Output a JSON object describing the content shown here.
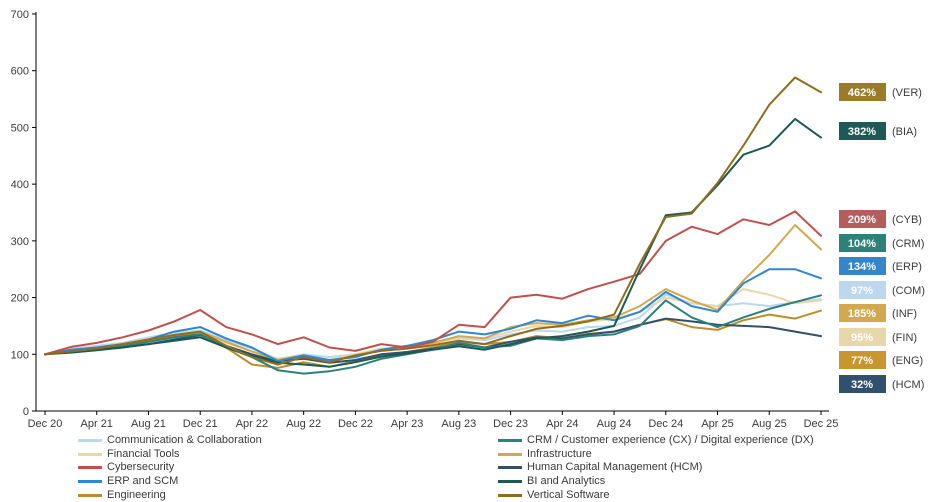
{
  "chart_data": {
    "type": "line",
    "title": "",
    "xlabel": "",
    "ylabel": "",
    "y_axis": {
      "min": 0,
      "max": 700,
      "step": 100,
      "tick_labels": [
        "0",
        "100",
        "200",
        "300",
        "400",
        "500",
        "600",
        "700"
      ]
    },
    "x_tick_labels": [
      "Dec 20",
      "Apr 21",
      "Aug 21",
      "Dec 21",
      "Apr 22",
      "Aug 22",
      "Dec 22",
      "Apr 23",
      "Aug 23",
      "Dec 23",
      "Apr 24",
      "Aug 24",
      "Dec 24",
      "Apr 25",
      "Aug 25",
      "Dec 25"
    ],
    "x_points": [
      "Dec 20",
      "Feb 21",
      "Apr 21",
      "Jun 21",
      "Aug 21",
      "Oct 21",
      "Dec 21",
      "Feb 22",
      "Apr 22",
      "Jun 22",
      "Aug 22",
      "Oct 22",
      "Dec 22",
      "Feb 23",
      "Apr 23",
      "Jun 23",
      "Aug 23",
      "Oct 23",
      "Dec 23",
      "Feb 24",
      "Apr 24",
      "Jun 24",
      "Aug 24",
      "Oct 24",
      "Dec 24",
      "Feb 25",
      "Apr 25",
      "Jun 25",
      "Aug 25",
      "Oct 25",
      "Dec 25"
    ],
    "grid": false,
    "legend_position": "bottom-two-columns",
    "series": [
      {
        "code": "COM",
        "name": "Communication & Collaboration",
        "color": "#BDD7EE",
        "pct_label": "97%",
        "badge_bg": "#BDD7EE",
        "values": [
          100,
          110,
          115,
          120,
          130,
          138,
          142,
          125,
          110,
          92,
          100,
          95,
          100,
          108,
          115,
          120,
          128,
          125,
          135,
          142,
          140,
          148,
          150,
          165,
          205,
          190,
          185,
          190,
          185,
          192,
          197
        ]
      },
      {
        "code": "FIN",
        "name": "Financial Tools",
        "color": "#E8D7A9",
        "pct_label": "95%",
        "badge_bg": "#E8D7A9",
        "values": [
          100,
          108,
          112,
          118,
          128,
          135,
          140,
          120,
          105,
          92,
          98,
          90,
          100,
          110,
          112,
          118,
          130,
          128,
          140,
          150,
          148,
          158,
          162,
          175,
          200,
          190,
          185,
          215,
          205,
          190,
          195
        ]
      },
      {
        "code": "ENG",
        "name": "Engineering",
        "color": "#BD8D2D",
        "pct_label": "77%",
        "badge_bg": "#C8952F",
        "values": [
          100,
          106,
          110,
          116,
          124,
          132,
          136,
          112,
          82,
          76,
          86,
          78,
          88,
          98,
          104,
          112,
          122,
          118,
          122,
          132,
          128,
          136,
          140,
          152,
          162,
          148,
          143,
          160,
          170,
          163,
          177
        ]
      },
      {
        "code": "HCM",
        "name": "Human Capital Management (HCM)",
        "color": "#31506E",
        "pct_label": "32%",
        "badge_bg": "#31506E",
        "values": [
          100,
          104,
          108,
          112,
          118,
          126,
          134,
          115,
          100,
          88,
          92,
          85,
          90,
          100,
          104,
          110,
          118,
          112,
          122,
          130,
          128,
          135,
          140,
          152,
          163,
          158,
          152,
          150,
          148,
          140,
          132
        ]
      },
      {
        "code": "INF",
        "name": "Infrastructure",
        "color": "#D1A94F",
        "pct_label": "185%",
        "badge_bg": "#D1A94F",
        "values": [
          100,
          107,
          112,
          118,
          126,
          134,
          140,
          122,
          105,
          90,
          98,
          88,
          98,
          108,
          112,
          120,
          132,
          128,
          148,
          155,
          152,
          160,
          165,
          185,
          215,
          195,
          178,
          230,
          275,
          328,
          285
        ]
      },
      {
        "code": "CRM",
        "name": "CRM / Customer experience (CX) / Digital experience (DX)",
        "color": "#2E807B",
        "pct_label": "104%",
        "badge_bg": "#2E807B",
        "values": [
          100,
          105,
          108,
          114,
          122,
          130,
          135,
          112,
          95,
          72,
          66,
          70,
          78,
          92,
          100,
          108,
          120,
          112,
          115,
          128,
          125,
          132,
          135,
          150,
          195,
          165,
          148,
          165,
          180,
          192,
          204
        ]
      },
      {
        "code": "ERP",
        "name": "ERP and SCM",
        "color": "#2E87D1",
        "pct_label": "134%",
        "badge_bg": "#3585C8",
        "values": [
          100,
          108,
          112,
          118,
          126,
          140,
          148,
          128,
          112,
          88,
          98,
          90,
          95,
          108,
          115,
          125,
          140,
          135,
          145,
          160,
          155,
          168,
          160,
          175,
          210,
          185,
          175,
          225,
          250,
          250,
          234
        ]
      },
      {
        "code": "CYB",
        "name": "Cybersecurity",
        "color": "#C0504D",
        "pct_label": "209%",
        "badge_bg": "#B25E5C",
        "values": [
          100,
          113,
          120,
          130,
          142,
          158,
          178,
          148,
          135,
          118,
          130,
          112,
          106,
          118,
          112,
          122,
          152,
          148,
          200,
          205,
          198,
          215,
          228,
          242,
          300,
          325,
          312,
          338,
          328,
          352,
          309
        ]
      },
      {
        "code": "BIA",
        "name": "BI and Analytics",
        "color": "#1C5A53",
        "pct_label": "382%",
        "badge_bg": "#1E5A55",
        "values": [
          100,
          103,
          107,
          112,
          118,
          124,
          130,
          112,
          98,
          85,
          82,
          78,
          86,
          96,
          102,
          108,
          114,
          108,
          118,
          128,
          132,
          140,
          150,
          250,
          345,
          350,
          398,
          452,
          468,
          515,
          482
        ]
      },
      {
        "code": "VER",
        "name": "Vertical Software",
        "color": "#8F6D1D",
        "pct_label": "462%",
        "badge_bg": "#9A7B28",
        "values": [
          100,
          105,
          110,
          118,
          126,
          134,
          140,
          115,
          95,
          82,
          95,
          86,
          98,
          106,
          110,
          116,
          124,
          118,
          132,
          145,
          150,
          158,
          170,
          260,
          342,
          348,
          402,
          468,
          540,
          588,
          562
        ]
      }
    ],
    "badge_order": [
      "VER",
      "BIA",
      "CYB",
      "CRM",
      "ERP",
      "COM",
      "INF",
      "FIN",
      "ENG",
      "HCM"
    ],
    "badge_codes_display": {
      "VER": "(VER)",
      "BIA": "(BIA)",
      "CYB": "(CYB)",
      "CRM": "(CRM)",
      "ERP": "(ERP)",
      "COM": "(COM)",
      "INF": "(INF)",
      "FIN": "(FIN)",
      "ENG": "(ENG)",
      "HCM": "(HCM)"
    },
    "legend_columns": {
      "left": [
        "COM",
        "FIN",
        "CYB",
        "ERP",
        "ENG"
      ],
      "right": [
        "CRM",
        "INF",
        "HCM",
        "BIA",
        "VER"
      ]
    }
  }
}
